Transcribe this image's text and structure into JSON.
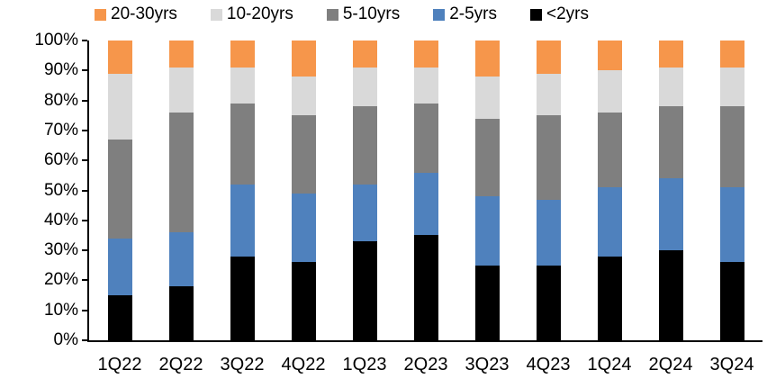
{
  "chart_data": {
    "type": "bar",
    "subtype": "stacked-100",
    "title": "",
    "xlabel": "",
    "ylabel": "",
    "ylim": [
      0,
      100
    ],
    "grid": false,
    "legend_position": "top",
    "y_ticks": [
      "100%",
      "90%",
      "80%",
      "70%",
      "60%",
      "50%",
      "40%",
      "30%",
      "20%",
      "10%",
      "0%"
    ],
    "categories": [
      "1Q22",
      "2Q22",
      "3Q22",
      "4Q22",
      "1Q23",
      "2Q23",
      "3Q23",
      "4Q23",
      "1Q24",
      "2Q24",
      "3Q24"
    ],
    "series": [
      {
        "name": "<2yrs",
        "color": "#000000",
        "values": [
          15,
          18,
          28,
          26,
          33,
          35,
          25,
          25,
          28,
          30,
          26
        ]
      },
      {
        "name": "2-5yrs",
        "color": "#4F81BD",
        "values": [
          19,
          18,
          24,
          23,
          19,
          21,
          23,
          22,
          23,
          24,
          25
        ]
      },
      {
        "name": "5-10yrs",
        "color": "#7F7F7F",
        "values": [
          33,
          40,
          27,
          26,
          26,
          23,
          26,
          28,
          25,
          24,
          27
        ]
      },
      {
        "name": "10-20yrs",
        "color": "#D9D9D9",
        "values": [
          22,
          15,
          12,
          13,
          13,
          12,
          14,
          14,
          14,
          13,
          13
        ]
      },
      {
        "name": "20-30yrs",
        "color": "#F6964B",
        "values": [
          11,
          9,
          9,
          12,
          9,
          9,
          12,
          11,
          10,
          9,
          9
        ]
      }
    ],
    "legend_order": [
      "20-30yrs",
      "10-20yrs",
      "5-10yrs",
      "2-5yrs",
      "<2yrs"
    ]
  },
  "colors": {
    "axis": "#000000",
    "background": "#FFFFFF",
    "orange_20_30yrs": "#F6964B",
    "light_gray_10_20yrs": "#D9D9D9",
    "dark_gray_5_10yrs": "#7F7F7F",
    "blue_2_5yrs": "#4F81BD",
    "black_lt2yrs": "#000000"
  }
}
